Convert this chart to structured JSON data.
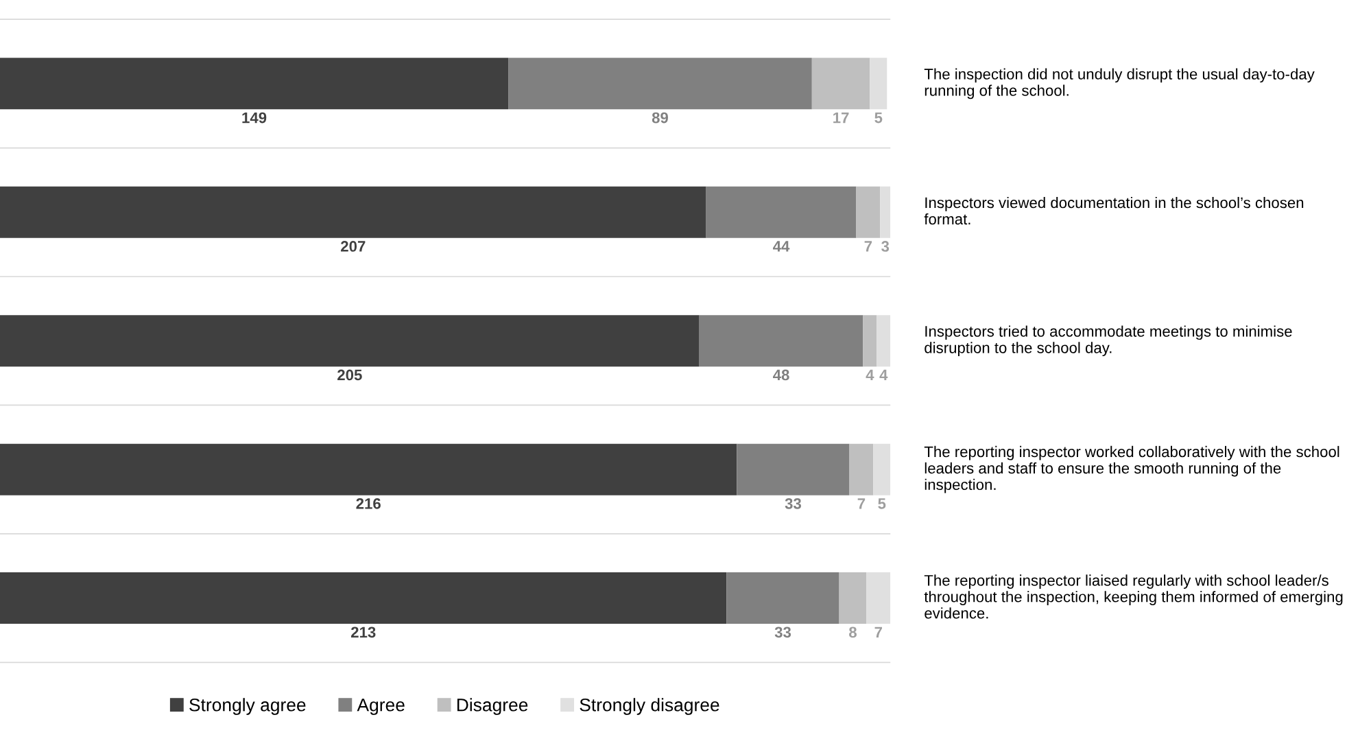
{
  "chart_data": {
    "type": "bar",
    "orientation": "horizontal",
    "stacked": true,
    "data_labels": true,
    "legend": "bottom",
    "categories": [
      "The inspection did not unduly disrupt the usual day-to-day running of the school.",
      "Inspectors viewed documentation in the school’s chosen format.",
      "Inspectors tried to accommodate meetings to minimise disruption to the school day.",
      "The reporting inspector worked collaboratively with the school leaders and staff to ensure the smooth running of the inspection.",
      "The reporting inspector liaised regularly with school leader/s throughout the inspection, keeping them informed of emerging evidence."
    ],
    "series": [
      {
        "name": "Strongly agree",
        "color": "#404040",
        "values": [
          149,
          207,
          205,
          216,
          213
        ]
      },
      {
        "name": "Agree",
        "color": "#808080",
        "values": [
          89,
          44,
          48,
          33,
          33
        ]
      },
      {
        "name": "Disagree",
        "color": "#bfbfbf",
        "values": [
          17,
          7,
          4,
          7,
          8
        ]
      },
      {
        "name": "Strongly disagree",
        "color": "#e0e0e0",
        "values": [
          5,
          3,
          4,
          5,
          7
        ]
      }
    ]
  }
}
